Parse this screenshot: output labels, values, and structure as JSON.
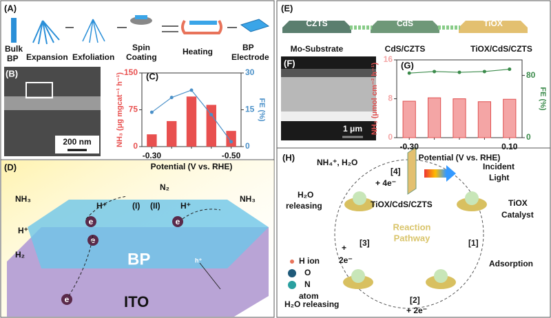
{
  "chart_data": [
    {
      "type": "bar",
      "xlabel": "Potential (V vs. RHE)",
      "ylabel": "NH₃ (μg mgcat⁻¹ h⁻¹)",
      "y2label": "FE (%)",
      "categories": [
        "-0.30",
        null,
        null,
        null,
        "-0.50"
      ],
      "series": [
        {
          "color": "#e8504f",
          "values": [
            25,
            52,
            102,
            85,
            32
          ]
        },
        {
          "color": "#4a90c8",
          "values": [
            14,
            20,
            23,
            13,
            2
          ],
          "axis": "y2"
        }
      ],
      "ylim": [
        0,
        150
      ],
      "yticks": [
        0,
        75,
        150
      ],
      "y2lim": [
        0,
        30
      ],
      "y2ticks": [
        0,
        15,
        30
      ]
    },
    {
      "type": "bar",
      "xlabel": "Potential (V vs. RHE)",
      "ylabel": "NH₃ (μmol cm⁻² h⁻¹)",
      "y2label": "FE (%)",
      "categories": [
        "-0.30",
        null,
        null,
        null,
        "0.10"
      ],
      "series": [
        {
          "color": "#f4a5a5",
          "values": [
            7.5,
            8.2,
            8.0,
            7.4,
            7.9
          ]
        },
        {
          "color": "#3a8a4a",
          "values": [
            83,
            85,
            84,
            85,
            88
          ],
          "axis": "y2"
        }
      ],
      "ylim": [
        0,
        16
      ],
      "yticks": [
        0,
        8,
        16
      ],
      "y2lim": [
        0,
        100
      ],
      "y2ticks": [
        0,
        80
      ]
    }
  ],
  "panel_a": {
    "label": "(A)",
    "texts": [
      "Bulk",
      "BP",
      "Expansion",
      "Exfoliation",
      "Spin",
      "Coating",
      "Heating",
      "BP",
      "Electrode"
    ]
  },
  "panel_b": {
    "label": "(B)",
    "scale": "200 nm"
  },
  "panel_c": {
    "label": "(C)"
  },
  "panel_d": {
    "label": "(D)",
    "texts": [
      "N₂",
      "NH₃",
      "H⁺",
      "(I)",
      "(II)",
      "H⁺",
      "NH₃",
      "H⁺",
      "H₂",
      "BP",
      "ITO",
      "e",
      "e",
      "e",
      "e",
      "h⁺"
    ]
  },
  "panel_e": {
    "label": "(E)",
    "texts": [
      "CZTS",
      "CdS",
      "TiOX",
      "Mo-Substrate",
      "CdS/CZTS",
      "TiOX/CdS/CZTS"
    ]
  },
  "panel_f": {
    "label": "(F)",
    "scale": "1 μm"
  },
  "panel_g": {
    "label": "(G)"
  },
  "panel_h": {
    "label": "(H)",
    "texts": [
      "NH₄⁺, H₂O",
      "+ 4e⁻",
      "[4]",
      "Incident",
      "Light",
      "H₂O",
      "releasing",
      "TiOX/CdS/CZTS",
      "TiOX",
      "Catalyst",
      "Reaction",
      "Pathway",
      "[1]",
      "Adsorption",
      "[3]",
      "+",
      "2e⁻",
      "[2]",
      "+ 2e⁻",
      "H₂O releasing",
      "H ion",
      "O",
      "N",
      "atom"
    ]
  }
}
